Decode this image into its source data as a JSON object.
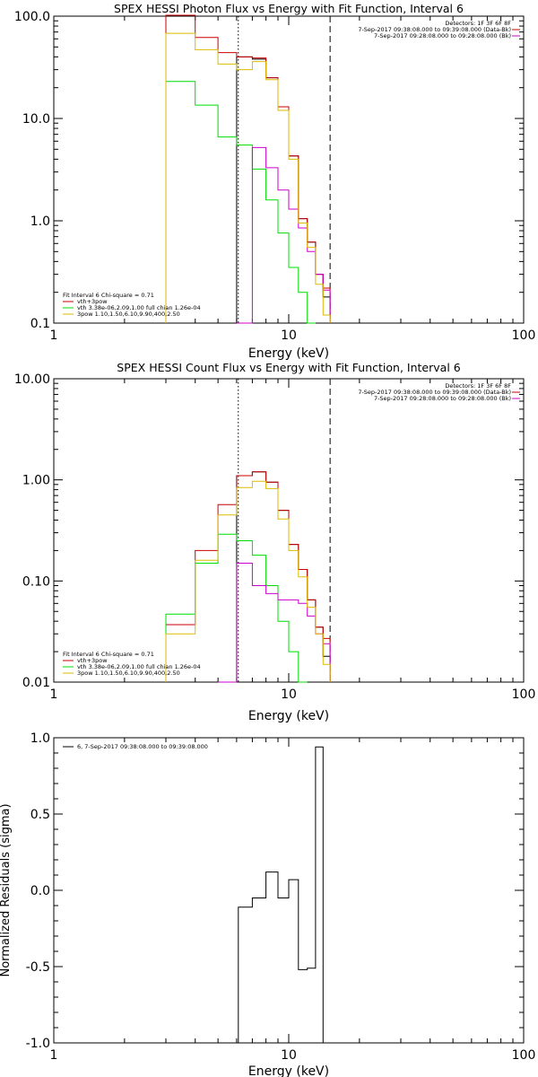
{
  "chart_data": [
    {
      "type": "line",
      "title": "SPEX HESSI Photon Flux vs Energy with Fit Function, Interval 6",
      "xlabel": "Energy (keV)",
      "ylabel": "",
      "x_scale": "log",
      "y_scale": "log",
      "xlim": [
        1,
        100
      ],
      "ylim": [
        0.1,
        100
      ],
      "x_ticks": [
        "1",
        "10",
        "100"
      ],
      "y_ticks": [
        "0.1",
        "1.0",
        "10.0",
        "100.0"
      ],
      "fit_info": [
        "Fit Interval 6   Chi-square = 0.71",
        "vth+3pow",
        "vth 3.38e-06,2.09,1.00  full chian 1.26e-04",
        "3pow 1.10,1.50,6.10,9.90,400,2.50"
      ],
      "header": [
        "Detectors: 1F 3F 6F 8F",
        "7-Sep-2017 09:38:08.000 to 09:39:08.000 (Data-Bk)",
        "7-Sep-2017 09:28:08.000 to 09:28:08.000 (Bk)"
      ],
      "bin_edges": [
        3.0,
        4.0,
        5.0,
        6.0,
        7.0,
        8.0,
        9.0,
        10.0,
        11.0,
        12.0,
        13.0,
        14.0,
        15.0
      ],
      "series": [
        {
          "color": "#000000",
          "values": [
            null,
            null,
            null,
            40,
            38,
            25,
            13,
            4.3,
            1.05,
            0.62,
            0.3,
            0.18
          ]
        },
        {
          "color": "#cc0000",
          "values": [
            102,
            62,
            44,
            40,
            39,
            25,
            13,
            4.3,
            1.05,
            0.62,
            0.3,
            0.22
          ]
        },
        {
          "color": "#00dd00",
          "values": [
            23,
            13.5,
            6.6,
            5.5,
            3.2,
            1.6,
            0.76,
            0.35,
            0.2,
            0.1
          ]
        },
        {
          "color": "#cc00cc",
          "values": [
            null,
            null,
            null,
            0.1,
            5.2,
            3.3,
            2.0,
            1.3,
            0.85,
            0.5,
            0.3,
            0.21
          ]
        },
        {
          "color": "#ddbb00",
          "values": [
            68,
            47,
            34,
            30,
            36,
            24,
            12,
            4.0,
            0.95,
            0.55,
            0.24,
            0.12
          ]
        }
      ],
      "vlines": [
        6.1,
        15
      ],
      "legend_colors": [
        "#000000",
        "#cc0000",
        "#00dd00",
        "#ddbb00"
      ]
    },
    {
      "type": "line",
      "title": "SPEX HESSI Count Flux vs Energy with Fit Function, Interval 6",
      "xlabel": "Energy (keV)",
      "ylabel": "",
      "x_scale": "log",
      "y_scale": "log",
      "xlim": [
        1,
        100
      ],
      "ylim": [
        0.01,
        10
      ],
      "x_ticks": [
        "1",
        "10",
        "100"
      ],
      "y_ticks": [
        "0.01",
        "0.10",
        "1.00",
        "10.00"
      ],
      "fit_info": [
        "Fit Interval 6   Chi-square = 0.71",
        "vth+3pow",
        "vth 3.38e-06,2.09,1.00  full chian 1.26e-04",
        "3pow 1.10,1.50,6.10,9.90,400,2.50"
      ],
      "header": [
        "Detectors: 1F 3F 6F 8F",
        "7-Sep-2017 09:38:08.000 to 09:39:08.000 (Data-Bk)",
        "7-Sep-2017 09:28:08.000 to 09:28:08.000 (Bk)"
      ],
      "bin_edges": [
        3.0,
        4.0,
        5.0,
        6.0,
        7.0,
        8.0,
        9.0,
        10.0,
        11.0,
        12.0,
        13.0,
        14.0,
        15.0
      ],
      "series": [
        {
          "color": "#000000",
          "values": [
            null,
            null,
            null,
            1.1,
            1.2,
            0.95,
            0.5,
            0.23,
            0.13,
            0.065,
            0.035,
            0.018
          ]
        },
        {
          "color": "#cc0000",
          "values": [
            0.037,
            0.2,
            0.57,
            1.1,
            1.2,
            0.95,
            0.5,
            0.23,
            0.13,
            0.065,
            0.035,
            0.027
          ]
        },
        {
          "color": "#00dd00",
          "values": [
            0.047,
            0.15,
            0.29,
            0.25,
            0.18,
            0.09,
            0.04,
            0.02,
            0.01
          ]
        },
        {
          "color": "#cc00cc",
          "values": [
            null,
            null,
            0.01,
            0.15,
            0.09,
            0.075,
            0.065,
            0.065,
            0.06,
            0.045,
            0.03,
            0.024
          ]
        },
        {
          "color": "#ddbb00",
          "values": [
            0.03,
            0.16,
            0.45,
            0.84,
            0.97,
            0.82,
            0.41,
            0.2,
            0.11,
            0.055,
            0.03,
            0.015
          ]
        }
      ],
      "vlines": [
        6.1,
        15
      ],
      "legend_colors": [
        "#000000",
        "#cc0000",
        "#00dd00",
        "#ddbb00"
      ]
    },
    {
      "type": "line",
      "title": "",
      "xlabel": "Energy (keV)",
      "ylabel": "Normalized Residuals (sigma)",
      "x_scale": "log",
      "y_scale": "linear",
      "xlim": [
        1,
        100
      ],
      "ylim": [
        -1.0,
        1.0
      ],
      "x_ticks": [
        "1",
        "10",
        "100"
      ],
      "y_ticks": [
        "-1.0",
        "-0.5",
        "0.0",
        "0.5",
        "1.0"
      ],
      "legend": "6,  7-Sep-2017 09:38:08.000 to 09:39:08.000",
      "bin_edges": [
        6.1,
        7.0,
        8.0,
        9.0,
        10.0,
        11.0,
        12.0,
        13.0,
        14.0,
        15.0
      ],
      "values": [
        -0.11,
        -0.05,
        0.12,
        -0.05,
        0.07,
        -0.52,
        -0.51,
        0.94,
        -1.0
      ]
    }
  ]
}
